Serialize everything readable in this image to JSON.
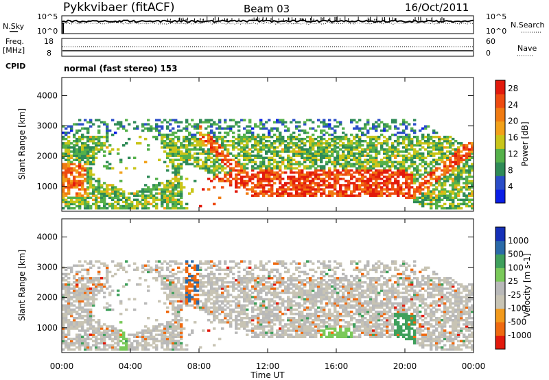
{
  "header": {
    "station": "Pykkvibaer (fitACF)",
    "beam": "Beam 03",
    "date": "16/Oct/2011"
  },
  "noise_panel": {
    "left_label": "N.Sky",
    "right_label": "N.Search",
    "ticks": [
      "10^5",
      "10^0"
    ]
  },
  "freq_panel": {
    "left_label_1": "Freq.",
    "left_label_2": "[MHz]",
    "left_ticks": [
      "18",
      "8"
    ],
    "right_label": "Nave",
    "right_ticks": [
      "60",
      "0"
    ]
  },
  "cpid_panel": {
    "label": "CPID",
    "text": "normal (fast stereo) 153"
  },
  "colors": {
    "power": [
      "#0a1ee6",
      "#2a4dc8",
      "#2f8b57",
      "#55b14a",
      "#c9c51a",
      "#f2a11a",
      "#f07b12",
      "#ee4b10",
      "#e21a0c"
    ],
    "velocity": [
      "#e21a0c",
      "#ef6a10",
      "#f29a1c",
      "#c8c4b4",
      "#b9b9b9",
      "#7ac95a",
      "#3fa05c",
      "#2a6aa8",
      "#1530b8"
    ]
  },
  "chart_data": [
    {
      "type": "heatmap",
      "variable": "Power",
      "ylabel": "Slant Range [km]",
      "yticks": [
        1000,
        2000,
        3000,
        4000
      ],
      "ylim": [
        180,
        4600
      ],
      "xlim": [
        0,
        24
      ],
      "colorbar": {
        "label": "Power [dB]",
        "ticks": [
          "4",
          "8",
          "12",
          "16",
          "20",
          "24",
          "28"
        ],
        "range": [
          0,
          30
        ]
      }
    },
    {
      "type": "heatmap",
      "variable": "Velocity",
      "ylabel": "Slant Range [km]",
      "yticks": [
        1000,
        2000,
        3000,
        4000
      ],
      "ylim": [
        180,
        4600
      ],
      "xlim": [
        0,
        24
      ],
      "xlabel": "Time UT",
      "xticks": [
        "00:00",
        "04:00",
        "08:00",
        "12:00",
        "16:00",
        "20:00",
        "00:00"
      ],
      "colorbar": {
        "label": "Velocity [m s-1]",
        "ticks": [
          "1000",
          "500",
          "100",
          "25",
          "-25",
          "-100",
          "-500",
          "-1000"
        ]
      }
    }
  ]
}
